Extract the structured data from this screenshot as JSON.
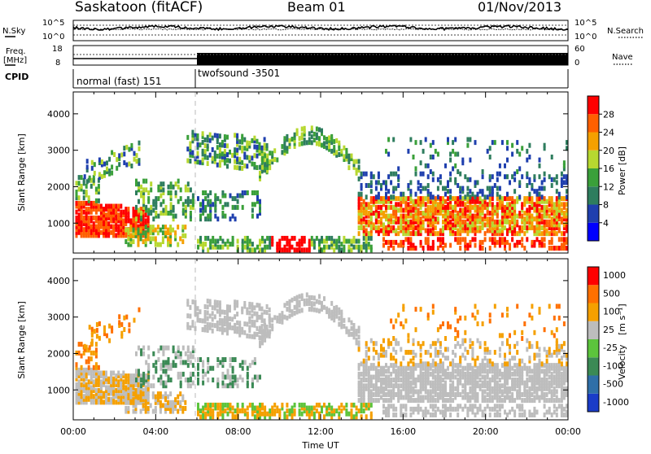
{
  "header": {
    "station": "Saskatoon (fitACF)",
    "beam": "Beam 01",
    "date": "01/Nov/2013"
  },
  "top_panels": {
    "nsky_label": "N.Sky",
    "nsky_ticks": [
      "10^5",
      "10^0"
    ],
    "nsearch_label": "N.Search",
    "nsearch_ticks": [
      "10^5",
      "10^0"
    ],
    "freq_label_1": "Freq.",
    "freq_label_2": "[MHz]",
    "freq_ticks": [
      "18",
      "8"
    ],
    "nave_label": "Nave",
    "nave_ticks": [
      "60",
      "0"
    ],
    "cpid_label": "CPID",
    "cpid_modes": [
      {
        "name": "normal (fast) 151",
        "start_hour": 0,
        "end_hour": 6
      },
      {
        "name": "twofsound -3501",
        "start_hour": 6,
        "end_hour": 24
      }
    ]
  },
  "chart_data": [
    {
      "type": "heatmap",
      "name": "power",
      "xlabel": "Time UT",
      "ylabel": "Slant Range [km]",
      "x_ticks": [
        "00:00",
        "04:00",
        "08:00",
        "12:00",
        "16:00",
        "20:00",
        "00:00"
      ],
      "xlim_hours": [
        0,
        24
      ],
      "y_ticks": [
        1000,
        2000,
        3000,
        4000
      ],
      "ylim": [
        180,
        4600
      ],
      "colorbar_label": "Power [dB]",
      "colorbar_ticks": [
        4,
        8,
        12,
        16,
        20,
        24,
        28
      ],
      "colorbar_range": [
        0,
        30
      ],
      "colors": [
        "#0000ff",
        "#1f3fae",
        "#2e7d5e",
        "#3aa03a",
        "#b7d830",
        "#f5a000",
        "#ff6000",
        "#ff0000"
      ]
    },
    {
      "type": "heatmap",
      "name": "velocity",
      "xlabel": "Time UT",
      "ylabel": "Slant Range [km]",
      "x_ticks": [
        "00:00",
        "04:00",
        "08:00",
        "12:00",
        "16:00",
        "20:00",
        "00:00"
      ],
      "xlim_hours": [
        0,
        24
      ],
      "y_ticks": [
        1000,
        2000,
        3000,
        4000
      ],
      "ylim": [
        180,
        4600
      ],
      "colorbar_label": "Velocity [m s^-1]",
      "colorbar_ticks": [
        "1000",
        "500",
        "100",
        "25",
        "-25",
        "-100",
        "-500",
        "-1000"
      ],
      "colors": [
        "#1a3cc8",
        "#2f6fa8",
        "#3b8a55",
        "#5cc43c",
        "#bdbdbd",
        "#f5a000",
        "#ff7000",
        "#ff0000"
      ]
    }
  ],
  "axis_labels": {
    "x_title": "Time UT",
    "y_title": "Slant Range [km]",
    "power_cbar_label": "Power [dB]",
    "velocity_cbar_label": "Velocity",
    "velocity_cbar_unit": "[m s⁻¹]"
  }
}
